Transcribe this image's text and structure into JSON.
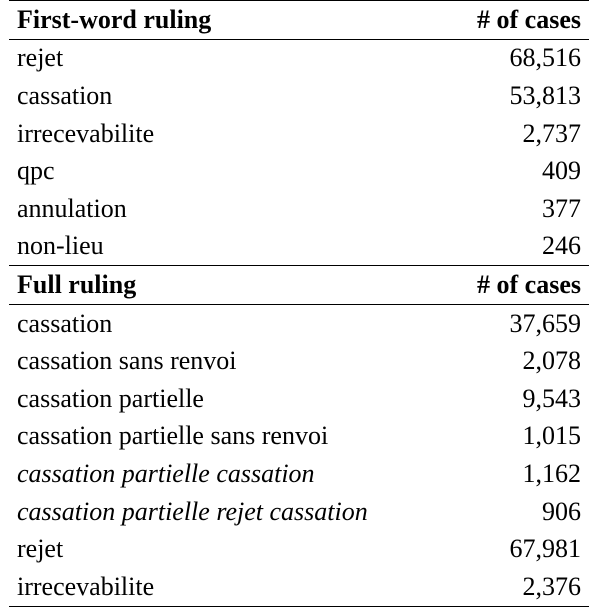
{
  "table": {
    "section1": {
      "header_label": "First-word ruling",
      "header_count": "# of cases",
      "rows": [
        {
          "label": "rejet",
          "count": "68,516",
          "italic": false
        },
        {
          "label": "cassation",
          "count": "53,813",
          "italic": false
        },
        {
          "label": "irrecevabilite",
          "count": "2,737",
          "italic": false
        },
        {
          "label": "qpc",
          "count": "409",
          "italic": false
        },
        {
          "label": "annulation",
          "count": "377",
          "italic": false
        },
        {
          "label": "non-lieu",
          "count": "246",
          "italic": false
        }
      ]
    },
    "section2": {
      "header_label": "Full ruling",
      "header_count": "# of cases",
      "rows": [
        {
          "label": "cassation",
          "count": "37,659",
          "italic": false
        },
        {
          "label": "cassation sans renvoi",
          "count": "2,078",
          "italic": false
        },
        {
          "label": "cassation partielle",
          "count": "9,543",
          "italic": false
        },
        {
          "label": "cassation partielle sans renvoi",
          "count": "1,015",
          "italic": false
        },
        {
          "label": "cassation partielle cassation",
          "count": "1,162",
          "italic": true
        },
        {
          "label": "cassation partielle rejet cassation",
          "count": "906",
          "italic": true
        },
        {
          "label": "rejet",
          "count": "67,981",
          "italic": false
        },
        {
          "label": "irrecevabilite",
          "count": "2,376",
          "italic": false
        }
      ]
    }
  }
}
